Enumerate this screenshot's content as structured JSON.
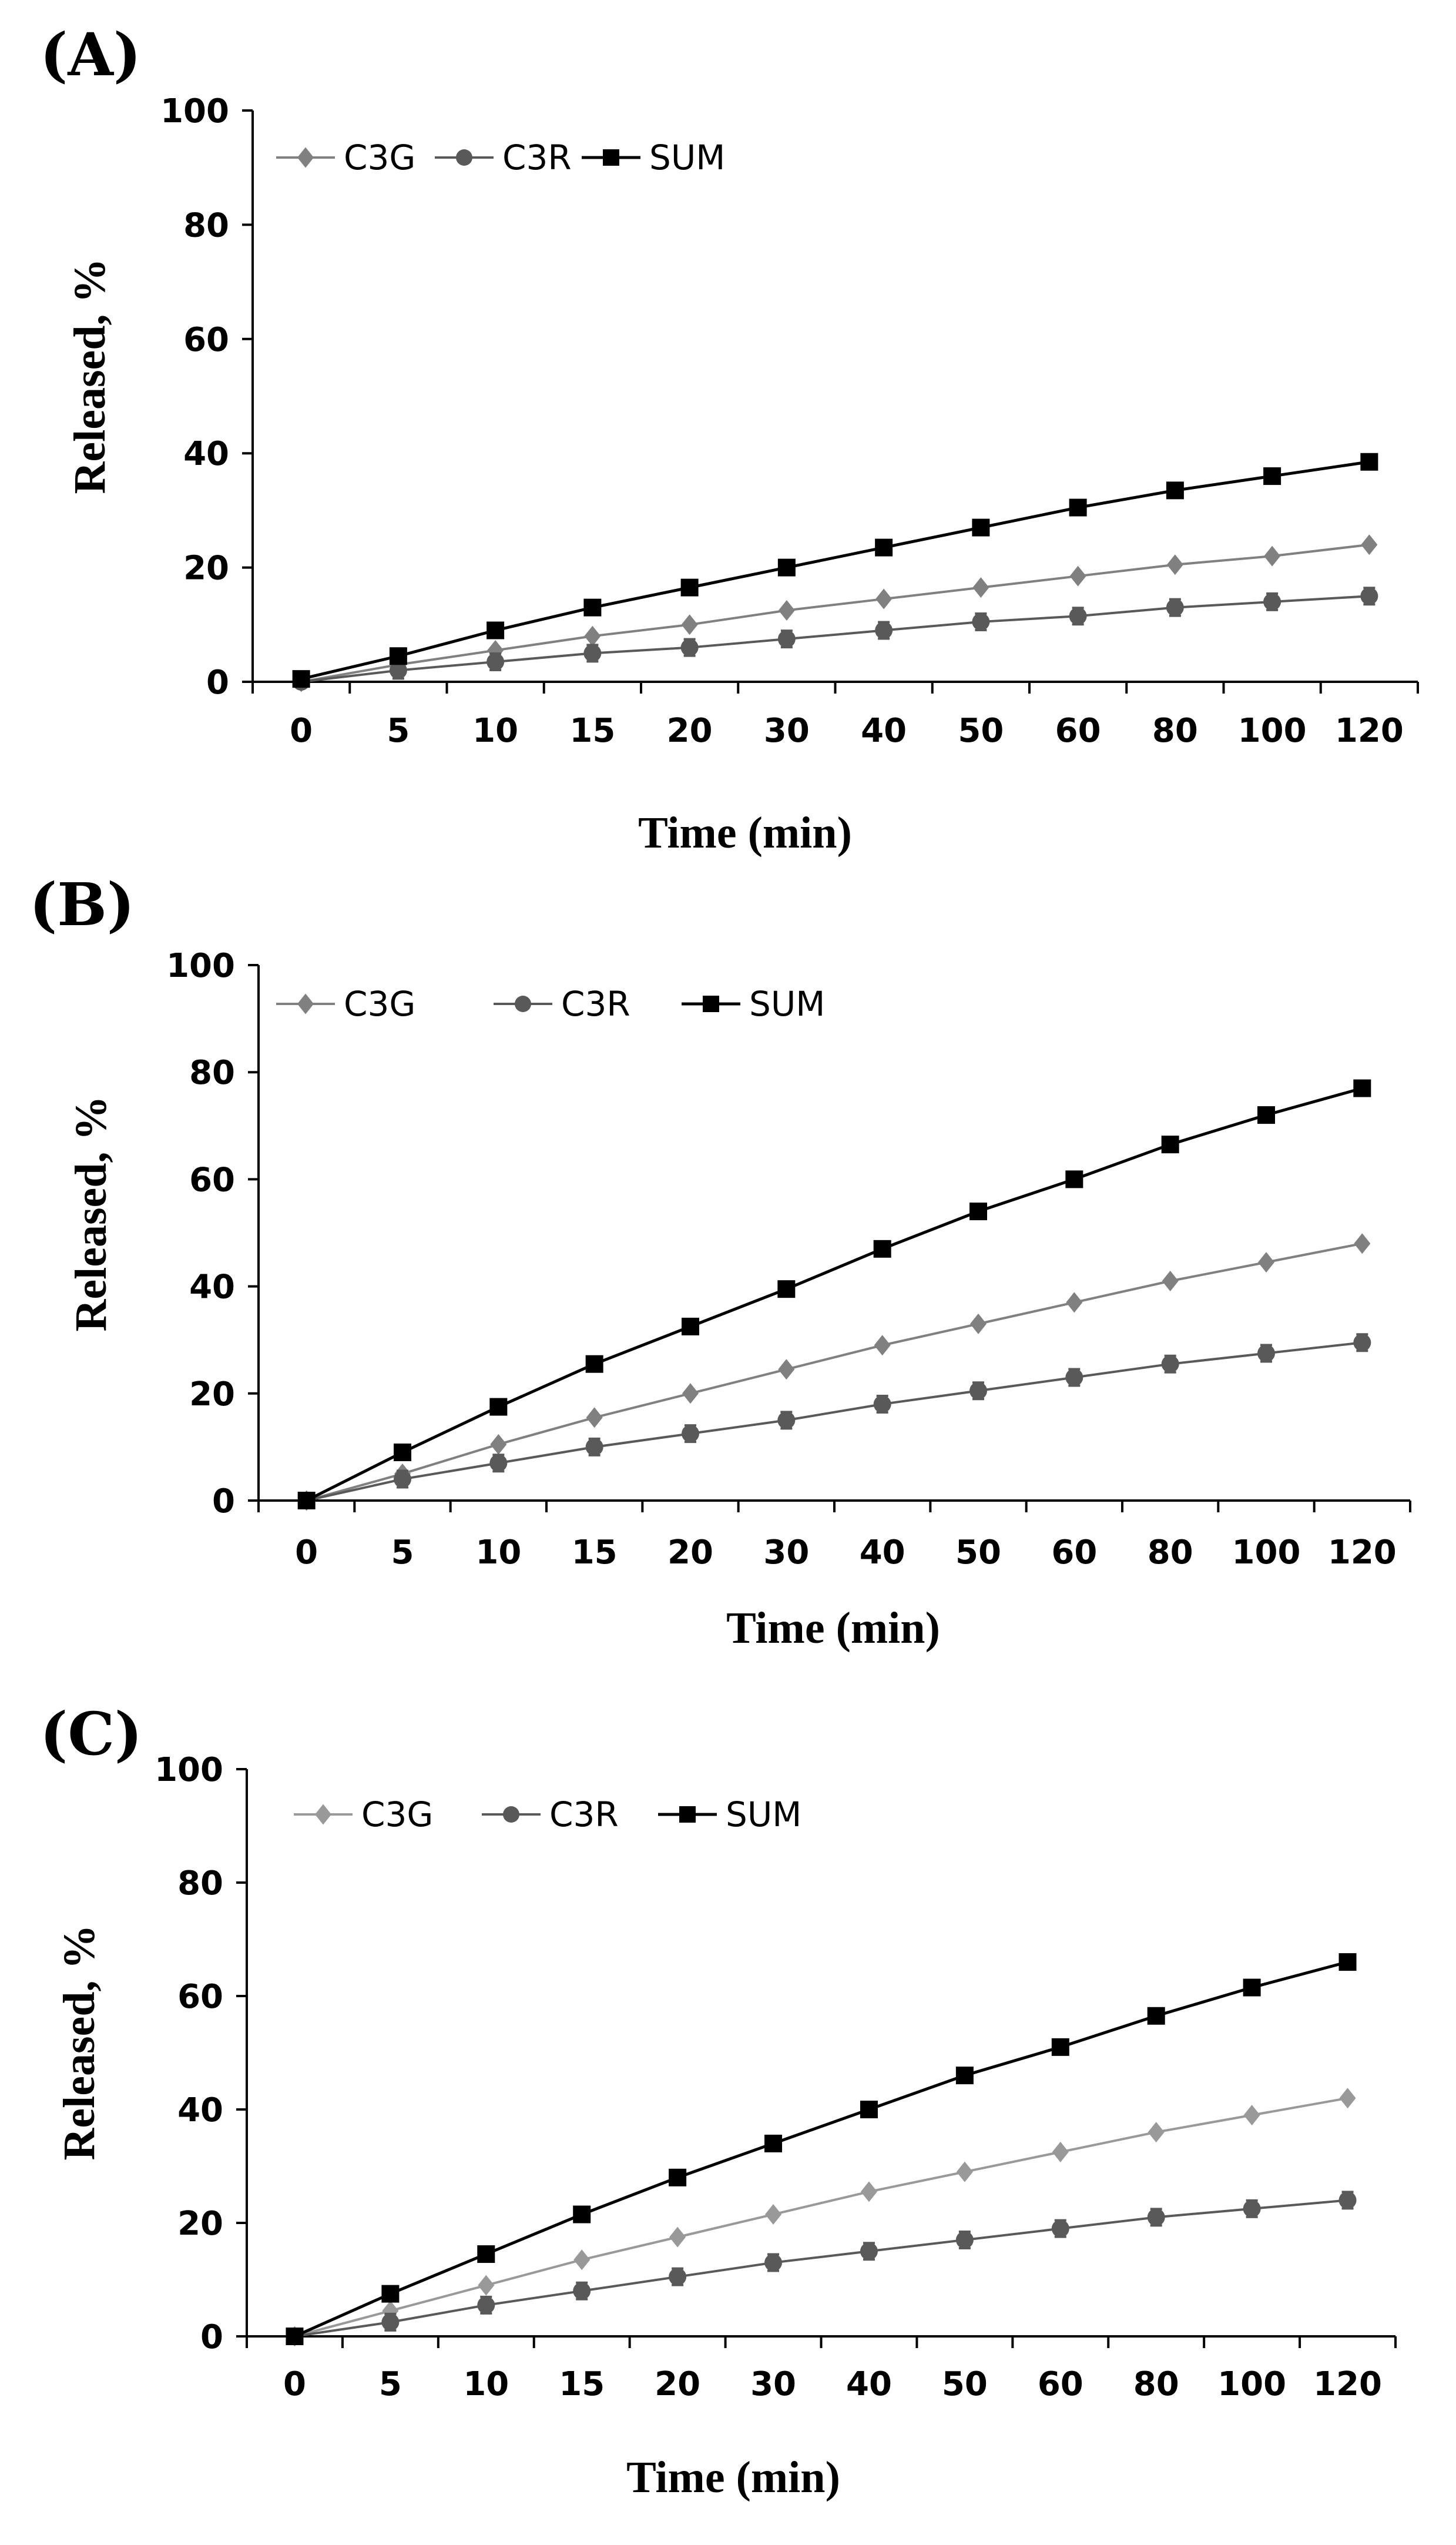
{
  "chart_data": [
    {
      "panel": "(A)",
      "type": "line",
      "categories": [
        "0",
        "5",
        "10",
        "15",
        "20",
        "30",
        "40",
        "50",
        "60",
        "80",
        "100",
        "120"
      ],
      "xlabel": "Time (min)",
      "ylabel": "Released, %",
      "ylim": [
        0,
        100
      ],
      "yticks": [
        0,
        20,
        40,
        60,
        80,
        100
      ],
      "legend_position": "top-left",
      "grid": false,
      "series": [
        {
          "name": "C3G",
          "marker": "diamond",
          "color": "#808080",
          "values": [
            0,
            3,
            5.5,
            8,
            10,
            12.5,
            14.5,
            16.5,
            18.5,
            20.5,
            22,
            24
          ]
        },
        {
          "name": "C3R",
          "marker": "circle",
          "color": "#595959",
          "values": [
            0,
            2,
            3.5,
            5,
            6,
            7.5,
            9,
            10.5,
            11.5,
            13,
            14,
            15
          ]
        },
        {
          "name": "SUM",
          "marker": "square",
          "color": "#000000",
          "values": [
            0.5,
            4.5,
            9,
            13,
            16.5,
            20,
            23.5,
            27,
            30.5,
            33.5,
            36,
            38.5
          ]
        }
      ]
    },
    {
      "panel": "(B)",
      "type": "line",
      "categories": [
        "0",
        "5",
        "10",
        "15",
        "20",
        "30",
        "40",
        "50",
        "60",
        "80",
        "100",
        "120"
      ],
      "xlabel": "Time (min)",
      "ylabel": "Released, %",
      "ylim": [
        0,
        100
      ],
      "yticks": [
        0,
        20,
        40,
        60,
        80,
        100
      ],
      "legend_position": "top-left",
      "grid": false,
      "series": [
        {
          "name": "C3G",
          "marker": "diamond",
          "color": "#808080",
          "values": [
            0,
            5,
            10.5,
            15.5,
            20,
            24.5,
            29,
            33,
            37,
            41,
            44.5,
            48
          ]
        },
        {
          "name": "C3R",
          "marker": "circle",
          "color": "#595959",
          "values": [
            0,
            4,
            7,
            10,
            12.5,
            15,
            18,
            20.5,
            23,
            25.5,
            27.5,
            29.5
          ]
        },
        {
          "name": "SUM",
          "marker": "square",
          "color": "#000000",
          "values": [
            0,
            9,
            17.5,
            25.5,
            32.5,
            39.5,
            47,
            54,
            60,
            66.5,
            72,
            77
          ]
        }
      ]
    },
    {
      "panel": "(C)",
      "type": "line",
      "categories": [
        "0",
        "5",
        "10",
        "15",
        "20",
        "30",
        "40",
        "50",
        "60",
        "80",
        "100",
        "120"
      ],
      "xlabel": "Time (min)",
      "ylabel": "Released, %",
      "ylim": [
        0,
        100
      ],
      "yticks": [
        0,
        20,
        40,
        60,
        80,
        100
      ],
      "legend_position": "top-left",
      "grid": false,
      "series": [
        {
          "name": "C3G",
          "marker": "diamond",
          "color": "#999999",
          "values": [
            0,
            4.5,
            9,
            13.5,
            17.5,
            21.5,
            25.5,
            29,
            32.5,
            36,
            39,
            42
          ]
        },
        {
          "name": "C3R",
          "marker": "circle",
          "color": "#595959",
          "values": [
            0,
            2.5,
            5.5,
            8,
            10.5,
            13,
            15,
            17,
            19,
            21,
            22.5,
            24
          ]
        },
        {
          "name": "SUM",
          "marker": "square",
          "color": "#000000",
          "values": [
            0,
            7.5,
            14.5,
            21.5,
            28,
            34,
            40,
            46,
            51,
            56.5,
            61.5,
            66
          ]
        }
      ]
    }
  ]
}
